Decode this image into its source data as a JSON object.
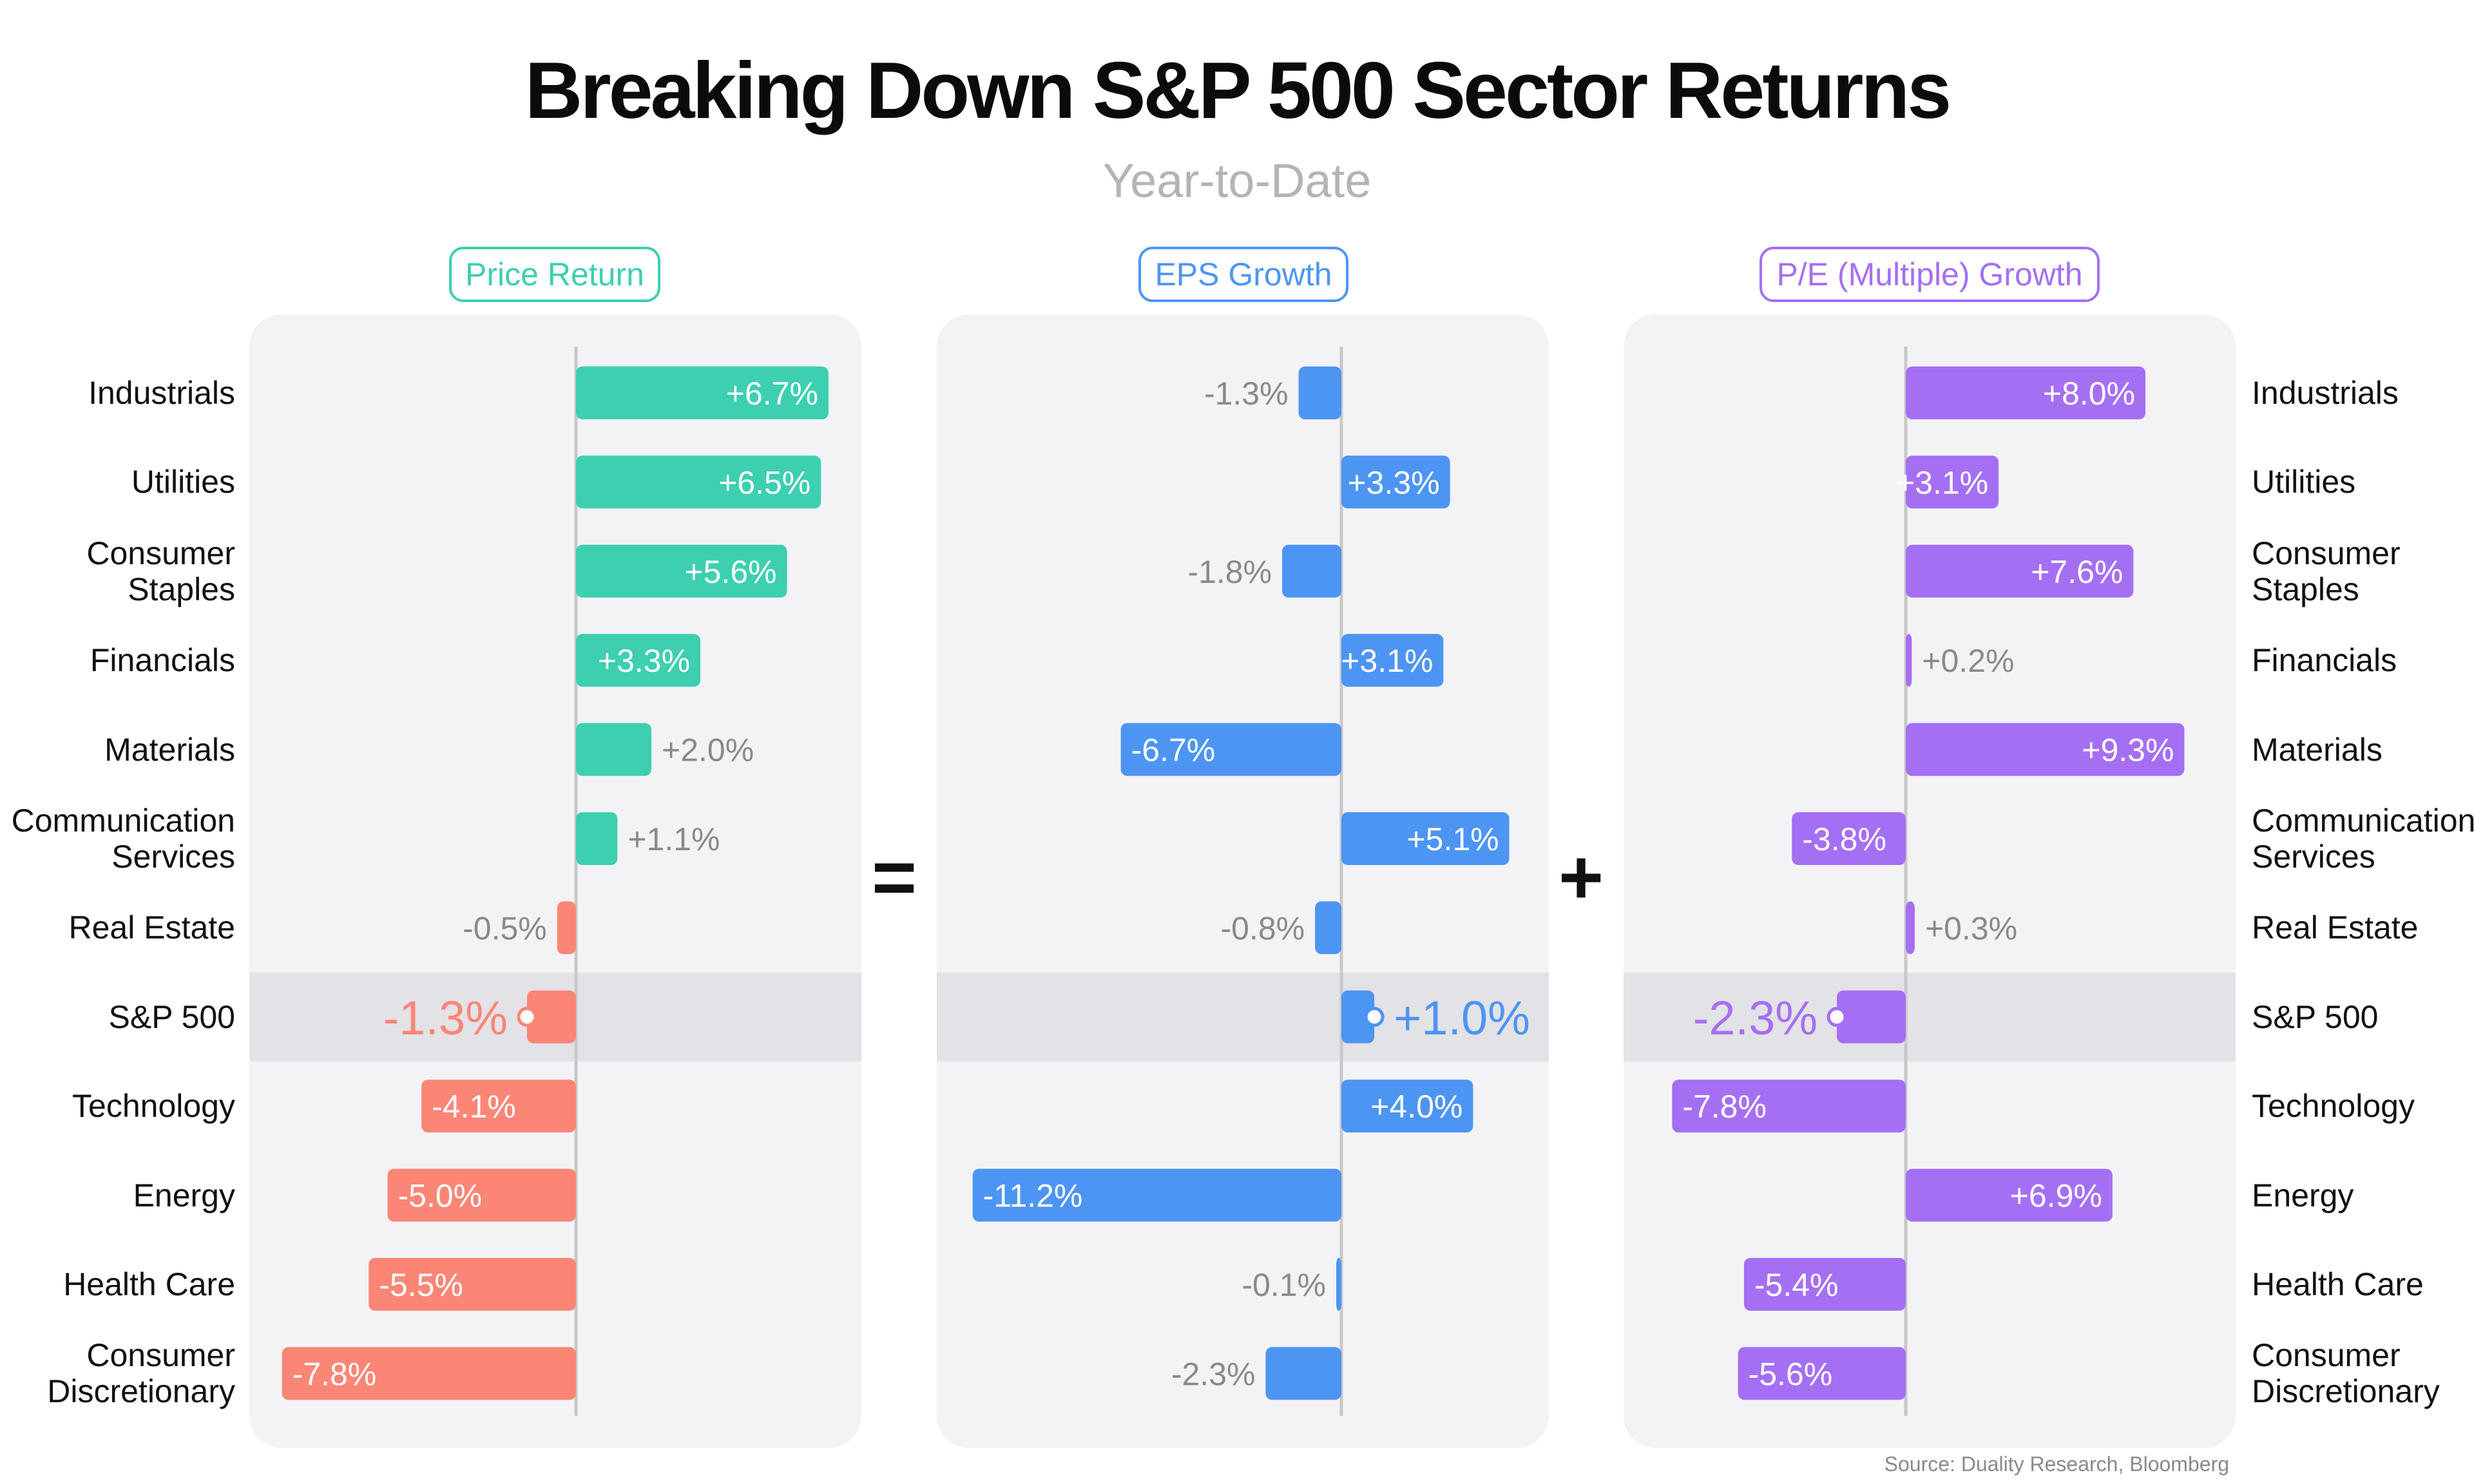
{
  "title": "Breaking Down S&P 500 Sector Returns",
  "subtitle": "Year-to-Date",
  "source": "Source: Duality Research, Bloomberg",
  "operators": {
    "equals": "=",
    "plus": "+"
  },
  "colors": {
    "price": "#3dcfb0",
    "price_neg": "#fb8676",
    "eps": "#4d95f3",
    "pe": "#a56ff4",
    "outside_label": "#8a8a8a",
    "highlight_band": "#e3e2e6",
    "axis_line": "#c8c8c8"
  },
  "chart_data": [
    {
      "type": "bar",
      "orientation": "horizontal",
      "title": "Price Return",
      "categories": [
        "Industrials",
        "Utilities",
        "Consumer Staples",
        "Financials",
        "Materials",
        "Communication Services",
        "Real Estate",
        "S&P 500",
        "Technology",
        "Energy",
        "Health Care",
        "Consumer Discretionary"
      ],
      "values": [
        6.7,
        6.5,
        5.6,
        3.3,
        2.0,
        1.1,
        -0.5,
        -1.3,
        -4.1,
        -5.0,
        -5.5,
        -7.8
      ],
      "labels": [
        "+6.7%",
        "+6.5%",
        "+5.6%",
        "+3.3%",
        "+2.0%",
        "+1.1%",
        "-0.5%",
        "-1.3%",
        "-4.1%",
        "-5.0%",
        "-5.5%",
        "-7.8%"
      ],
      "highlight_category": "S&P 500"
    },
    {
      "type": "bar",
      "orientation": "horizontal",
      "title": "EPS Growth",
      "categories": [
        "Industrials",
        "Utilities",
        "Consumer Staples",
        "Financials",
        "Materials",
        "Communication Services",
        "Real Estate",
        "S&P 500",
        "Technology",
        "Energy",
        "Health Care",
        "Consumer Discretionary"
      ],
      "values": [
        -1.3,
        3.3,
        -1.8,
        3.1,
        -6.7,
        5.1,
        -0.8,
        1.0,
        4.0,
        -11.2,
        -0.1,
        -2.3
      ],
      "labels": [
        "-1.3%",
        "+3.3%",
        "-1.8%",
        "+3.1%",
        "-6.7%",
        "+5.1%",
        "-0.8%",
        "+1.0%",
        "+4.0%",
        "-11.2%",
        "-0.1%",
        "-2.3%"
      ],
      "highlight_category": "S&P 500"
    },
    {
      "type": "bar",
      "orientation": "horizontal",
      "title": "P/E (Multiple) Growth",
      "categories": [
        "Industrials",
        "Utilities",
        "Consumer Staples",
        "Financials",
        "Materials",
        "Communication Services",
        "Real Estate",
        "S&P 500",
        "Technology",
        "Energy",
        "Health Care",
        "Consumer Discretionary"
      ],
      "values": [
        8.0,
        3.1,
        7.6,
        0.2,
        9.3,
        -3.8,
        0.3,
        -2.3,
        -7.8,
        6.9,
        -5.4,
        -5.6
      ],
      "labels": [
        "+8.0%",
        "+3.1%",
        "+7.6%",
        "+0.2%",
        "+9.3%",
        "-3.8%",
        "+0.3%",
        "-2.3%",
        "-7.8%",
        "+6.9%",
        "-5.4%",
        "-5.6%"
      ],
      "highlight_category": "S&P 500"
    }
  ],
  "row_labels": [
    [
      "Industrials"
    ],
    [
      "Utilities"
    ],
    [
      "Consumer",
      "Staples"
    ],
    [
      "Financials"
    ],
    [
      "Materials"
    ],
    [
      "Communication",
      "Services"
    ],
    [
      "Real Estate"
    ],
    [
      "S&P 500"
    ],
    [
      "Technology"
    ],
    [
      "Energy"
    ],
    [
      "Health Care"
    ],
    [
      "Consumer",
      "Discretionary"
    ]
  ]
}
